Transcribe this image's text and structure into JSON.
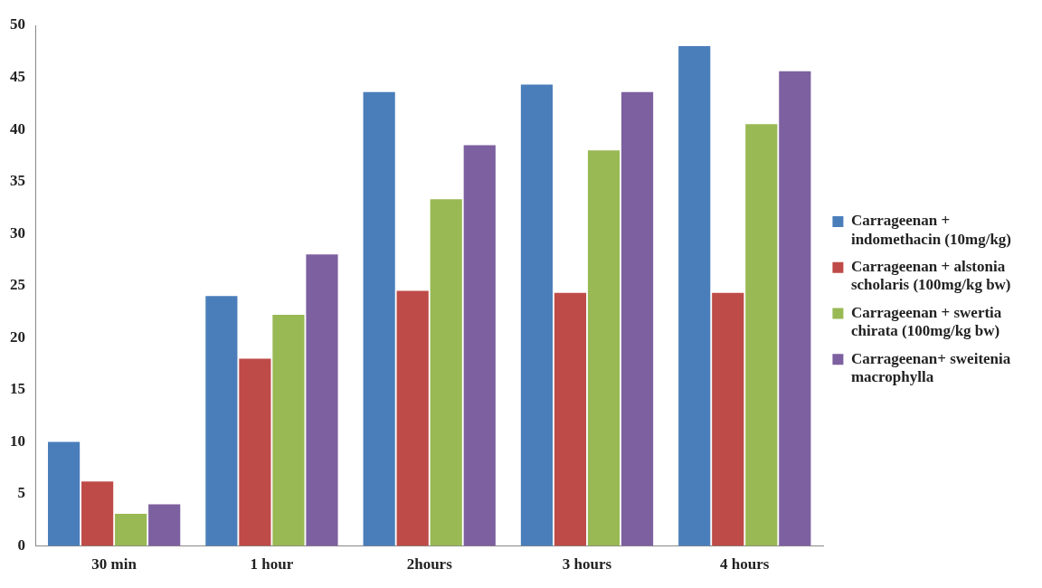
{
  "chart_data": {
    "type": "bar",
    "categories": [
      "30 min",
      "1 hour",
      "2hours",
      "3 hours",
      "4 hours"
    ],
    "series": [
      {
        "name": "Carrageenan + indomethacin (10mg/kg)",
        "color": "#4a7ebb",
        "values": [
          10,
          24,
          43.6,
          44.3,
          48
        ]
      },
      {
        "name": "Carrageenan + alstonia scholaris (100mg/kg bw)",
        "color": "#be4b48",
        "values": [
          6.2,
          18,
          24.5,
          24.3,
          24.3
        ]
      },
      {
        "name": "Carrageenan + swertia chirata (100mg/kg bw)",
        "color": "#98b954",
        "values": [
          3.1,
          22.2,
          33.3,
          38,
          40.5
        ]
      },
      {
        "name": "Carrageenan+ sweitenia macrophylla",
        "color": "#7d60a0",
        "values": [
          4,
          28,
          38.5,
          43.6,
          45.6
        ]
      }
    ],
    "ylim": [
      0,
      50
    ],
    "yticks": [
      0,
      5,
      10,
      15,
      20,
      25,
      30,
      35,
      40,
      45,
      50
    ],
    "grid": false,
    "legend": "right"
  }
}
